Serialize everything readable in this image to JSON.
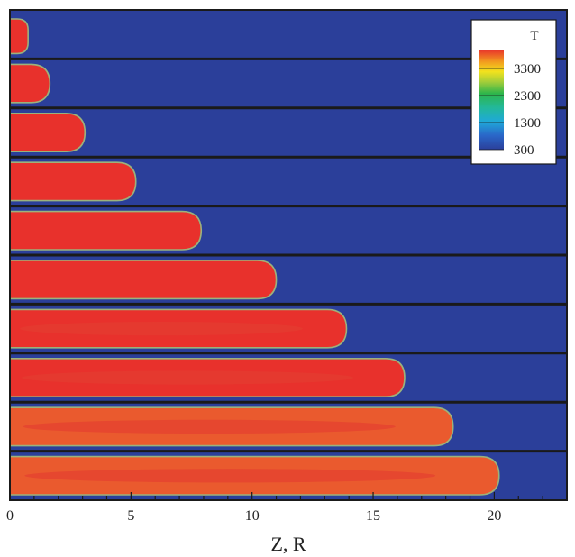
{
  "chart_data": {
    "type": "heatmap",
    "xlabel": "Z, R",
    "xlim": [
      0,
      23
    ],
    "x_ticks": [
      0,
      5,
      10,
      15,
      20
    ],
    "panel_count": 10,
    "legend": {
      "title": "T",
      "placement": "top-right",
      "ticks": [
        300,
        1300,
        2300,
        3300
      ],
      "tick_labels": [
        "300",
        "1300",
        "2300",
        "3300"
      ],
      "range": [
        300,
        4000
      ]
    },
    "colors": {
      "background_field": "#2B3F9A",
      "hot_region": "#E8312C",
      "hot_core": "#EA5A2E",
      "interface": "#9BB27C",
      "separator": "#1a1a1a"
    },
    "series": [
      {
        "front_z": 0.75
      },
      {
        "front_z": 1.65
      },
      {
        "front_z": 3.1
      },
      {
        "front_z": 5.2
      },
      {
        "front_z": 7.9
      },
      {
        "front_z": 11.0
      },
      {
        "front_z": 13.9
      },
      {
        "front_z": 16.3
      },
      {
        "front_z": 18.3
      },
      {
        "front_z": 20.2
      }
    ]
  }
}
